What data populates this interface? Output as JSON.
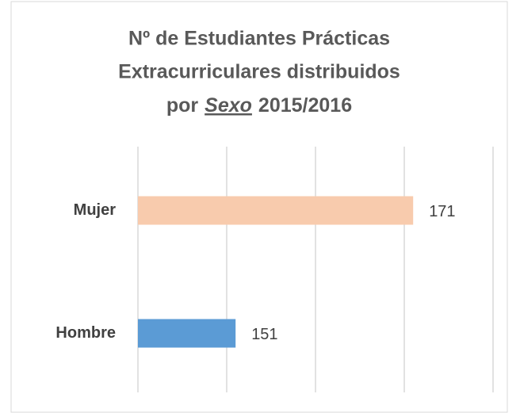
{
  "chart_data": {
    "type": "barh",
    "title": [
      "Nº de Estudiantes Prácticas",
      "Extracurriculares distribuidos",
      "por",
      "Sexo",
      "2015/2016"
    ],
    "categories": [
      "Mujer",
      "Hombre"
    ],
    "values": [
      171,
      151
    ],
    "colors": [
      "#f8cbad",
      "#5b9bd5"
    ],
    "xlim": [
      140,
      180
    ],
    "xticks": [
      140,
      150,
      160,
      170,
      180
    ],
    "grid": true
  }
}
